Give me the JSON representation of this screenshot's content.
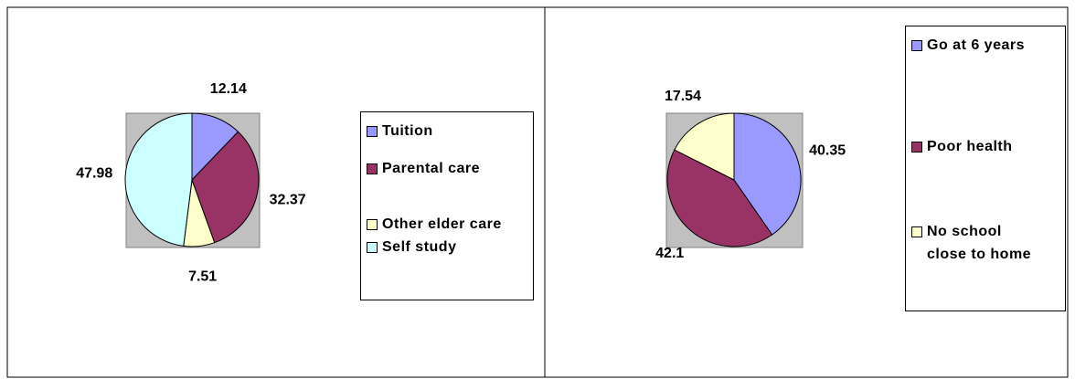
{
  "chart_data": [
    {
      "type": "pie",
      "categories": [
        "Tuition",
        "Parental care",
        "Other elder care",
        "Self study"
      ],
      "values": [
        12.14,
        32.37,
        7.51,
        47.98
      ],
      "colors": [
        "#9999ff",
        "#993366",
        "#ffffcc",
        "#ccffff"
      ]
    },
    {
      "type": "pie",
      "categories": [
        "Go at 6 years",
        "Poor health",
        "No school close to home"
      ],
      "values": [
        40.35,
        42.1,
        17.54
      ],
      "colors": [
        "#9999ff",
        "#993366",
        "#ffffcc"
      ]
    }
  ]
}
